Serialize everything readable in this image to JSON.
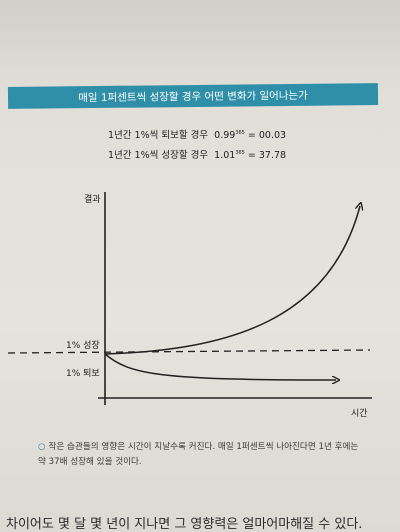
{
  "banner": {
    "title": "매일 1퍼센트씩 성장할 경우 어떤 변화가 일어나는가"
  },
  "equations": {
    "decline_prefix": "1년간 1%씩 퇴보할 경우",
    "decline_base": "0.99",
    "decline_exp": "365",
    "decline_result": "= 00.03",
    "growth_prefix": "1년간 1%씩 성장할 경우",
    "growth_base": "1.01",
    "growth_exp": "365",
    "growth_result": "= 37.78"
  },
  "graph": {
    "y_axis_label": "결과",
    "x_axis_label": "시간",
    "growth_label": "1% 성장",
    "decline_label": "1% 퇴보"
  },
  "caption": {
    "bullet": "○",
    "text": "작은 습관들의 영향은 시간이 지날수록 커진다. 매일 1퍼센트씩 나아진다면 1년 후에는 약 37배 성장해 있을 것이다."
  },
  "page_text": {
    "bottom_line": "차이어도 몇 달 몇 년이 지나면 그 영향력은 얼마어마해질 수 있다."
  }
}
